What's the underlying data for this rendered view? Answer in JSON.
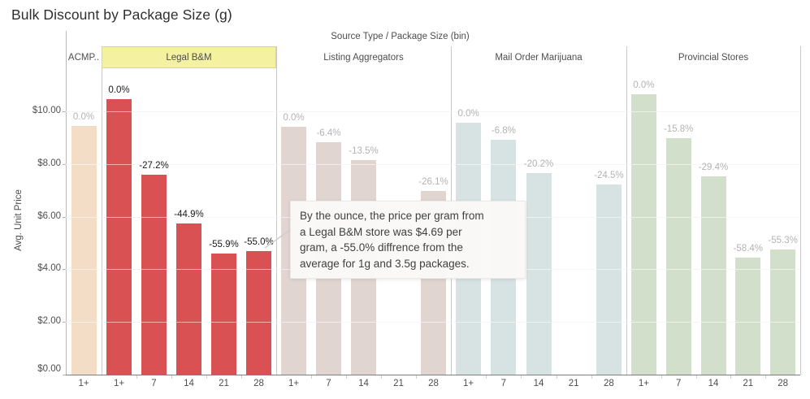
{
  "chart_data": {
    "type": "bar",
    "title": "Bulk Discount by Package Size (g)",
    "field_header": "Source Type / Package Size (bin)",
    "ylabel": "Avg. Unit Price",
    "y_tick_labels": [
      "$0.00",
      "$2.00",
      "$4.00",
      "$6.00",
      "$8.00",
      "$10.00"
    ],
    "y_tick_values": [
      0,
      2,
      4,
      6,
      8,
      10
    ],
    "ylim": [
      0,
      11.6
    ],
    "categories": [
      "1+",
      "7",
      "14",
      "21",
      "28"
    ],
    "grid": true,
    "panels": [
      {
        "name": "ACMP..",
        "highlighted": false,
        "bar_color": "#f3ddc6",
        "label_color": "#b3b3b3",
        "categories": [
          "1+"
        ],
        "values": [
          9.45
        ],
        "labels": [
          "0.0%"
        ]
      },
      {
        "name": "Legal B&M",
        "highlighted": true,
        "bar_color": "#d95153",
        "label_color": "#1b1b1b",
        "categories": [
          "1+",
          "7",
          "14",
          "21",
          "28"
        ],
        "values": [
          10.45,
          7.59,
          5.74,
          4.6,
          4.69
        ],
        "labels": [
          "0.0%",
          "-27.2%",
          "-44.9%",
          "-55.9%",
          "-55.0%"
        ]
      },
      {
        "name": "Listing Aggregators",
        "highlighted": false,
        "bar_color": "#e0d5d0",
        "label_color": "#b3b3b3",
        "categories": [
          "1+",
          "7",
          "14",
          "21",
          "28"
        ],
        "values": [
          9.42,
          8.82,
          8.15,
          null,
          6.96
        ],
        "labels": [
          "0.0%",
          "-6.4%",
          "-13.5%",
          "",
          "-26.1%"
        ]
      },
      {
        "name": "Mail Order Marijuana",
        "highlighted": false,
        "bar_color": "#d7e2e2",
        "label_color": "#b3b3b3",
        "categories": [
          "1+",
          "7",
          "14",
          "21",
          "28"
        ],
        "values": [
          9.57,
          8.92,
          7.64,
          null,
          7.22
        ],
        "labels": [
          "0.0%",
          "-6.8%",
          "-20.2%",
          "",
          "-24.5%"
        ]
      },
      {
        "name": "Provincial Stores",
        "highlighted": false,
        "bar_color": "#d2dfcb",
        "label_color": "#b3b3b3",
        "categories": [
          "1+",
          "7",
          "14",
          "21",
          "28"
        ],
        "values": [
          10.66,
          8.99,
          7.54,
          4.43,
          4.76
        ],
        "labels": [
          "0.0%",
          "-15.8%",
          "-29.4%",
          "-58.4%",
          "-55.3%"
        ]
      }
    ],
    "highlight_color": "#f4f1a1",
    "tooltip_lines": [
      "By the ounce, the price per gram from",
      "a Legal B&M store was $4.69 per",
      "gram, a -55.0% diffrence from the",
      "average for 1g and 3.5g packages."
    ]
  }
}
